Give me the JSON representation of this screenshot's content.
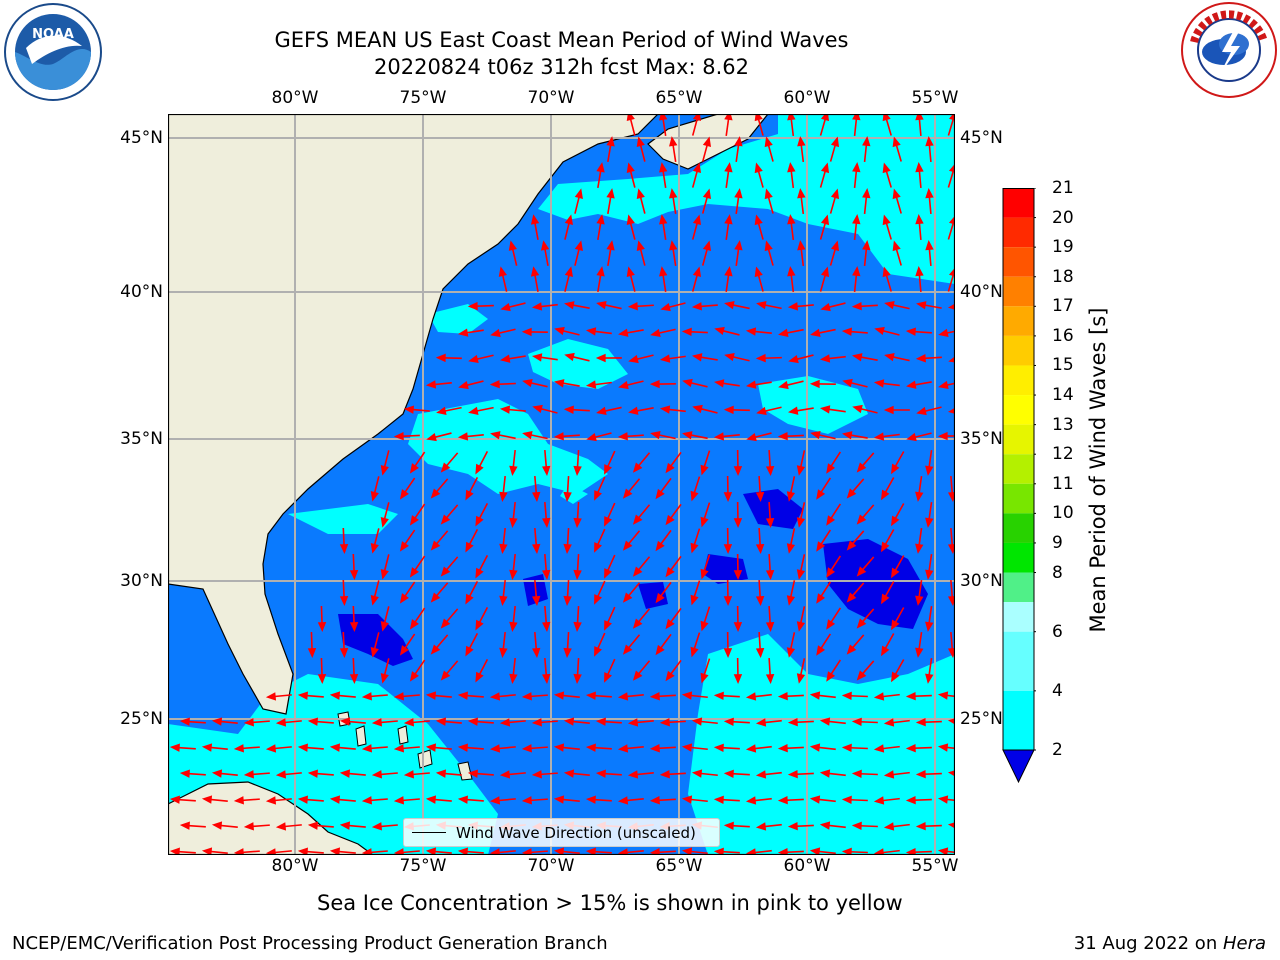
{
  "title": {
    "line1": "GEFS MEAN US East Coast Mean Period of Wind Waves",
    "line2": "20220824 t06z 312h fcst   Max: 8.62"
  },
  "map": {
    "longitude_labels": [
      "80°W",
      "75°W",
      "70°W",
      "65°W",
      "60°W",
      "55°W"
    ],
    "latitude_labels": [
      "45°N",
      "40°N",
      "35°N",
      "30°N",
      "25°N"
    ],
    "extent": {
      "lon": [
        -85,
        -54.5
      ],
      "lat": [
        20.5,
        46
      ]
    },
    "colors": {
      "land": "#efeedc",
      "ocean_2_4": "#0a7afe",
      "ocean_4_6": "#00ffff",
      "ocean_lt2": "#0000e6",
      "arrows": "#ff0000",
      "grid": "#b0b0b0"
    }
  },
  "legend": {
    "label": "Wind Wave Direction (unscaled)"
  },
  "colorbar": {
    "title": "Mean Period of Wind Waves [s]",
    "ticks": [
      "21",
      "20",
      "19",
      "18",
      "17",
      "16",
      "15",
      "14",
      "13",
      "12",
      "11",
      "10",
      "9",
      "8",
      "6",
      "4",
      "2"
    ],
    "colors": [
      "#ff0000",
      "#ff2a00",
      "#ff5500",
      "#ff8000",
      "#ffaa00",
      "#ffcc00",
      "#ffee00",
      "#ffff00",
      "#e6f500",
      "#b4f000",
      "#78e600",
      "#28d200",
      "#00e600",
      "#50f088",
      "#aaffff",
      "#66ffff",
      "#00ffff",
      "#0a7afe"
    ],
    "extend_color": "#0000e6"
  },
  "notes": {
    "sea_ice": "Sea Ice Concentration > 15% is shown in pink to yellow",
    "credit": "NCEP/EMC/Verification Post Processing Product Generation Branch",
    "date": "31 Aug 2022 on ",
    "machine": "Hera"
  },
  "logos": {
    "left": "NOAA",
    "right": "NATIONAL WEATHER SERVICE"
  }
}
